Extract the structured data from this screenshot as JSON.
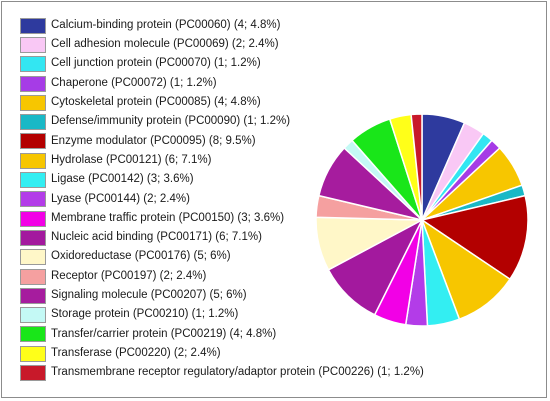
{
  "chart_data": {
    "type": "pie",
    "title": "",
    "legend_position": "left",
    "series": [
      {
        "name": "Calcium-binding protein (PC00060) (4; 4.8%)",
        "value": 4,
        "percent": 4.8,
        "color": "#2e3a9e"
      },
      {
        "name": "Cell adhesion molecule (PC00069) (2; 2.4%)",
        "value": 2,
        "percent": 2.4,
        "color": "#f9c8f5"
      },
      {
        "name": "Cell junction protein (PC00070) (1; 1.2%)",
        "value": 1,
        "percent": 1.2,
        "color": "#33e6f2"
      },
      {
        "name": "Chaperone (PC00072) (1; 1.2%)",
        "value": 1,
        "percent": 1.2,
        "color": "#a63ce6"
      },
      {
        "name": "Cytoskeletal protein (PC00085) (4; 4.8%)",
        "value": 4,
        "percent": 4.8,
        "color": "#f7c600"
      },
      {
        "name": "Defense/immunity protein (PC00090) (1; 1.2%)",
        "value": 1,
        "percent": 1.2,
        "color": "#19b8c6"
      },
      {
        "name": "Enzyme modulator (PC00095) (8; 9.5%)",
        "value": 8,
        "percent": 9.5,
        "color": "#b30000"
      },
      {
        "name": "Hydrolase (PC00121) (6; 7.1%)",
        "value": 6,
        "percent": 7.1,
        "color": "#f7c600"
      },
      {
        "name": "Ligase (PC00142) (3; 3.6%)",
        "value": 3,
        "percent": 3.6,
        "color": "#33eef2"
      },
      {
        "name": "Lyase (PC00144) (2; 2.4%)",
        "value": 2,
        "percent": 2.4,
        "color": "#b33ce8"
      },
      {
        "name": "Membrane traffic protein (PC00150) (3; 3.6%)",
        "value": 3,
        "percent": 3.6,
        "color": "#f200e6"
      },
      {
        "name": "Nucleic acid binding (PC00171) (6; 7.1%)",
        "value": 6,
        "percent": 7.1,
        "color": "#a3199e"
      },
      {
        "name": "Oxidoreductase (PC00176) (5; 6%)",
        "value": 5,
        "percent": 6,
        "color": "#fff7c8"
      },
      {
        "name": "Receptor (PC00197) (2; 2.4%)",
        "value": 2,
        "percent": 2.4,
        "color": "#f5a0a0"
      },
      {
        "name": "Signaling molecule (PC00207) (5; 6%)",
        "value": 5,
        "percent": 6,
        "color": "#a61c9e"
      },
      {
        "name": "Storage protein (PC00210) (1; 1.2%)",
        "value": 1,
        "percent": 1.2,
        "color": "#c4f9f5"
      },
      {
        "name": "Transfer/carrier protein (PC00219) (4; 4.8%)",
        "value": 4,
        "percent": 4.8,
        "color": "#19e619"
      },
      {
        "name": "Transferase (PC00220) (2; 2.4%)",
        "value": 2,
        "percent": 2.4,
        "color": "#ffff19"
      },
      {
        "name": "Transmembrane receptor regulatory/adaptor protein (PC00226) (1; 1.2%)",
        "value": 1,
        "percent": 1.2,
        "color": "#c8192a"
      }
    ]
  }
}
